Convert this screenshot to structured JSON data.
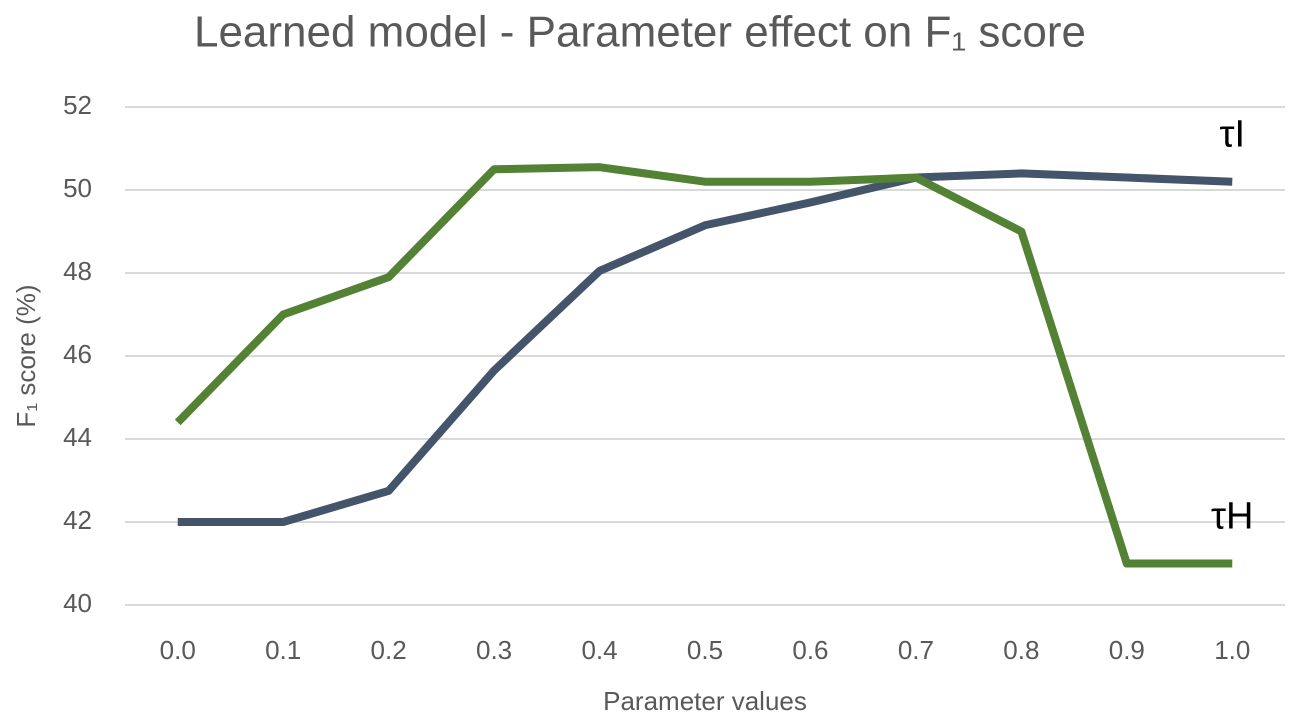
{
  "chart_data": {
    "type": "line",
    "title": "Learned model - Parameter effect on F₁ score",
    "xlabel": "Parameter values",
    "ylabel": "F₁ score (%)",
    "categories": [
      "0.0",
      "0.1",
      "0.2",
      "0.3",
      "0.4",
      "0.5",
      "0.6",
      "0.7",
      "0.8",
      "0.9",
      "1.0"
    ],
    "series": [
      {
        "name": "τI",
        "color": "#44546a",
        "values": [
          42.0,
          42.0,
          42.75,
          45.65,
          48.05,
          49.15,
          49.7,
          50.3,
          50.4,
          50.3,
          50.2
        ]
      },
      {
        "name": "τH",
        "color": "#548235",
        "values": [
          44.4,
          47.0,
          47.9,
          50.5,
          50.55,
          50.2,
          50.2,
          50.3,
          49.0,
          41.0,
          41.0
        ]
      }
    ],
    "ylim": [
      40,
      52
    ],
    "yticks": [
      40,
      42,
      44,
      46,
      48,
      50,
      52
    ],
    "grid": true
  }
}
